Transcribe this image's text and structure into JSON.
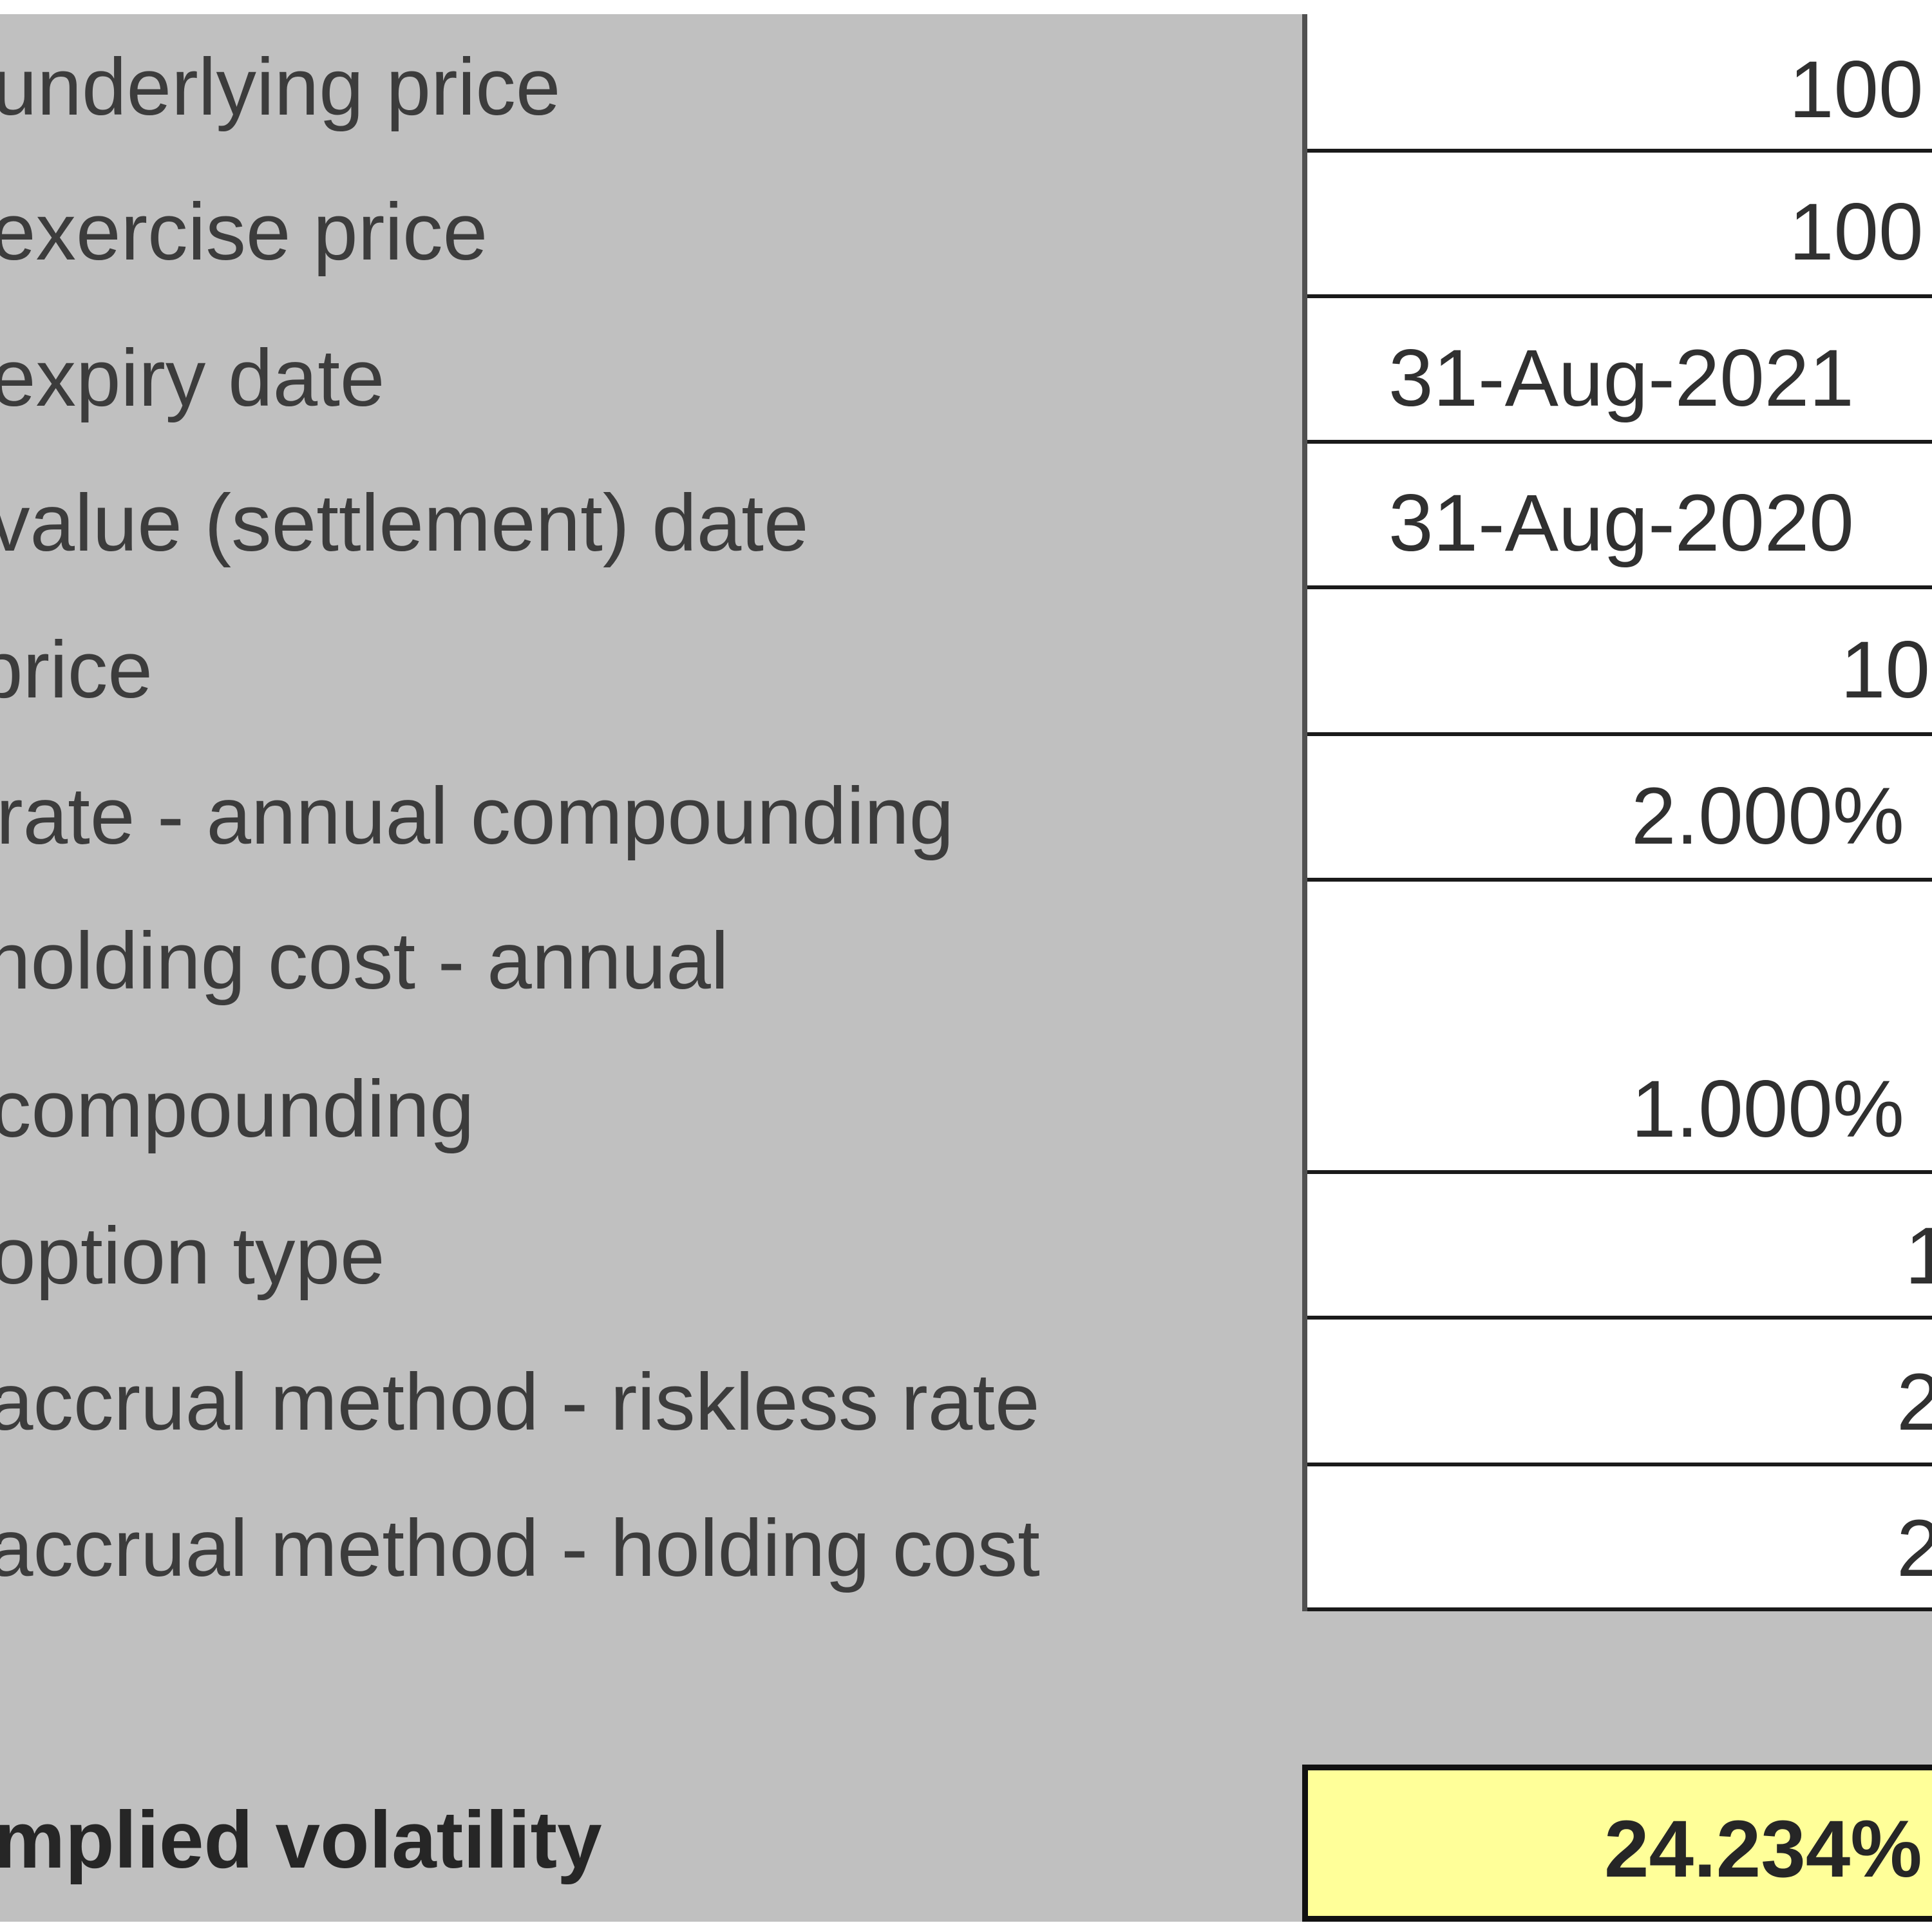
{
  "rows": [
    {
      "label": "underlying price",
      "value": "100"
    },
    {
      "label": "exercise price",
      "value": "100"
    },
    {
      "label": "expiry date",
      "value": "31-Aug-2021"
    },
    {
      "label": "value (settlement) date",
      "value": "31-Aug-2020"
    },
    {
      "label": "price",
      "value": "10"
    },
    {
      "label": "rate - annual compounding",
      "value": "2.000%"
    },
    {
      "label_line1": "holding cost - annual",
      "label_line2": "compounding",
      "value": "1.000%"
    },
    {
      "label": "option type",
      "value": "1"
    },
    {
      "label": "accrual method - riskless rate",
      "value": "2"
    },
    {
      "label": "accrual method - holding cost",
      "value": "2"
    }
  ],
  "result": {
    "label": "mplied volatility",
    "value": "24.234%"
  }
}
